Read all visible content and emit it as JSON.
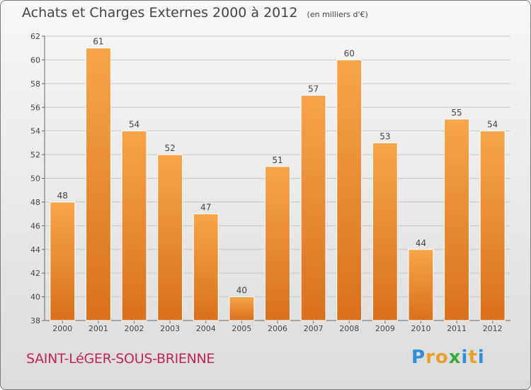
{
  "header": {
    "title": "Achats et Charges Externes 2000 à 2012",
    "unit": "(en milliers d'€)"
  },
  "footer": {
    "commune": "SAINT-LéGER-SOUS-BRIENNE",
    "brand_letters": [
      "P",
      "r",
      "o",
      "x",
      "i",
      "t",
      "i"
    ],
    "brand_colors": [
      "#2f8fd8",
      "#e8a028",
      "#e8a028",
      "#3aa83a",
      "#2f8fd8",
      "#e8a028",
      "#2f8fd8"
    ]
  },
  "chart_data": {
    "type": "bar",
    "title": "Achats et Charges Externes 2000 à 2012",
    "subtitle": "(en milliers d'€)",
    "categories": [
      "2000",
      "2001",
      "2002",
      "2003",
      "2004",
      "2005",
      "2006",
      "2007",
      "2008",
      "2009",
      "2010",
      "2011",
      "2012"
    ],
    "values": [
      48,
      61,
      54,
      52,
      47,
      40,
      51,
      57,
      60,
      53,
      44,
      55,
      54
    ],
    "ylim": [
      38,
      62
    ],
    "yticks": [
      "38",
      "40",
      "42",
      "44",
      "46",
      "48",
      "50",
      "52",
      "54",
      "56",
      "58",
      "60",
      "62"
    ],
    "grid": true,
    "bar_color_top": "#f7a54a",
    "bar_color_bottom": "#d9701e"
  }
}
